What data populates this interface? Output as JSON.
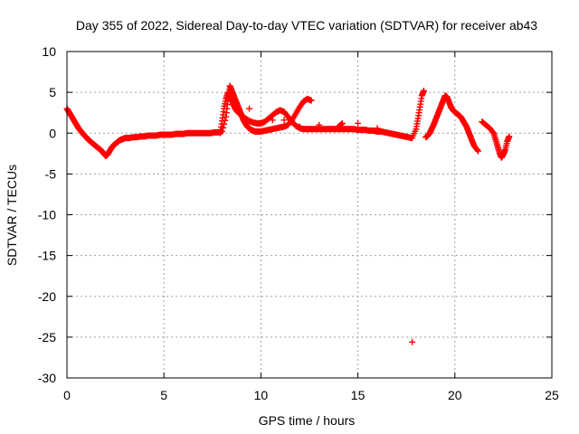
{
  "chart_data": {
    "type": "scatter",
    "title": "Day 355 of 2022, Sidereal Day-to-day VTEC variation (SDTVAR) for receiver ab43",
    "xlabel": "GPS time / hours",
    "ylabel": "SDTVAR / TECUs",
    "xlim": [
      0,
      25
    ],
    "ylim": [
      -30,
      10
    ],
    "xticks": [
      0,
      5,
      10,
      15,
      20,
      25
    ],
    "yticks": [
      10,
      5,
      0,
      -5,
      -10,
      -15,
      -20,
      -25,
      -30
    ],
    "grid": true,
    "marker": "+",
    "marker_color": "#ff0000",
    "series": [
      {
        "name": "SDTVAR",
        "x": [
          0.0,
          0.1,
          0.2,
          0.3,
          0.4,
          0.5,
          0.6,
          0.7,
          0.8,
          0.9,
          1.0,
          1.1,
          1.2,
          1.3,
          1.4,
          1.5,
          1.6,
          1.7,
          1.8,
          1.9,
          2.0,
          2.1,
          2.2,
          2.3,
          2.4,
          2.5,
          2.6,
          2.7,
          2.8,
          2.9,
          3.0,
          3.2,
          3.4,
          3.6,
          3.8,
          4.0,
          4.2,
          4.4,
          4.6,
          4.8,
          5.0,
          5.2,
          5.4,
          5.6,
          5.8,
          6.0,
          6.2,
          6.4,
          6.6,
          6.8,
          7.0,
          7.2,
          7.4,
          7.6,
          7.8,
          8.0,
          8.2,
          8.3,
          8.4,
          8.5,
          8.6,
          8.7,
          8.8,
          8.9,
          9.0,
          9.1,
          9.2,
          9.3,
          9.4,
          9.5,
          9.6,
          9.7,
          9.8,
          9.9,
          10.0,
          10.2,
          10.4,
          10.6,
          10.8,
          11.0,
          11.2,
          11.4,
          11.6,
          11.8,
          12.0,
          12.2,
          12.4,
          12.6,
          7.9,
          8.0,
          8.1,
          8.2,
          8.3,
          8.4,
          8.5,
          8.6,
          8.7,
          8.8,
          8.9,
          9.0,
          9.2,
          9.4,
          9.6,
          9.8,
          10.0,
          10.2,
          10.4,
          10.6,
          10.8,
          11.0,
          11.2,
          11.4,
          11.6,
          11.8,
          12.0,
          12.2,
          12.4,
          12.6,
          12.8,
          13.0,
          13.2,
          13.4,
          13.6,
          13.8,
          14.0,
          14.2,
          14.4,
          14.6,
          14.8,
          15.0,
          15.2,
          15.4,
          15.6,
          15.8,
          16.0,
          16.2,
          16.4,
          16.6,
          16.8,
          17.0,
          17.2,
          17.4,
          17.6,
          17.8,
          18.0,
          18.1,
          18.2,
          18.3,
          18.4,
          18.5,
          18.6,
          18.7,
          18.8,
          18.9,
          19.0,
          19.1,
          19.2,
          19.3,
          19.4,
          19.5,
          19.6,
          19.7,
          19.8,
          19.9,
          20.0,
          20.1,
          20.2,
          20.3,
          20.4,
          20.5,
          20.6,
          20.7,
          20.8,
          20.9,
          21.0,
          21.2,
          21.4,
          21.6,
          21.8,
          22.0,
          22.1,
          22.2,
          22.3,
          22.4,
          22.5,
          22.6,
          22.7,
          22.8,
          14.0,
          14.2,
          17.8,
          8.6,
          9.4,
          10.6,
          11.2,
          12.0,
          13.0,
          15.0,
          16.0
        ],
        "y": [
          3.0,
          2.6,
          2.2,
          1.8,
          1.4,
          1.0,
          0.6,
          0.3,
          0.0,
          -0.3,
          -0.5,
          -0.8,
          -1.0,
          -1.2,
          -1.4,
          -1.6,
          -1.8,
          -2.0,
          -2.2,
          -2.5,
          -2.8,
          -2.6,
          -2.2,
          -1.8,
          -1.5,
          -1.3,
          -1.1,
          -0.9,
          -0.8,
          -0.7,
          -0.6,
          -0.6,
          -0.5,
          -0.5,
          -0.4,
          -0.4,
          -0.3,
          -0.3,
          -0.3,
          -0.2,
          -0.2,
          -0.2,
          -0.2,
          -0.1,
          -0.1,
          -0.1,
          0.0,
          0.0,
          0.0,
          0.0,
          0.0,
          0.0,
          0.0,
          0.1,
          0.1,
          0.2,
          2.0,
          4.0,
          5.8,
          5.2,
          4.6,
          4.0,
          3.4,
          2.8,
          2.2,
          1.6,
          1.2,
          0.8,
          0.6,
          0.4,
          0.3,
          0.2,
          0.2,
          0.2,
          0.2,
          0.3,
          0.4,
          0.5,
          0.6,
          0.7,
          0.8,
          1.0,
          1.6,
          2.4,
          3.2,
          3.9,
          4.2,
          4.0,
          0.0,
          1.5,
          3.0,
          4.2,
          5.0,
          4.6,
          4.0,
          3.4,
          2.9,
          2.6,
          2.4,
          2.2,
          1.8,
          1.5,
          1.3,
          1.2,
          1.2,
          1.4,
          1.8,
          2.2,
          2.6,
          2.8,
          2.6,
          2.0,
          1.4,
          0.9,
          0.6,
          0.5,
          0.5,
          0.5,
          0.5,
          0.5,
          0.5,
          0.5,
          0.5,
          0.5,
          0.5,
          0.5,
          0.5,
          0.5,
          0.5,
          0.4,
          0.4,
          0.4,
          0.3,
          0.3,
          0.2,
          0.2,
          0.1,
          0.0,
          -0.1,
          -0.2,
          -0.3,
          -0.4,
          -0.5,
          -0.6,
          0.5,
          1.8,
          3.2,
          4.6,
          5.2,
          -0.5,
          -0.3,
          0.0,
          0.5,
          1.0,
          1.6,
          2.2,
          2.8,
          3.4,
          4.0,
          4.6,
          4.4,
          3.8,
          3.2,
          2.8,
          2.6,
          2.4,
          2.2,
          2.0,
          1.6,
          1.2,
          0.8,
          0.2,
          -0.4,
          -1.0,
          -1.6,
          -2.2,
          1.4,
          1.0,
          0.6,
          0.0,
          -0.8,
          -1.6,
          -2.4,
          -3.0,
          -2.6,
          -2.0,
          -1.0,
          -0.4,
          0.8,
          1.2,
          -25.6,
          3.6,
          3.0,
          1.6,
          1.6,
          0.8,
          1.0,
          1.2,
          0.6
        ]
      }
    ]
  }
}
